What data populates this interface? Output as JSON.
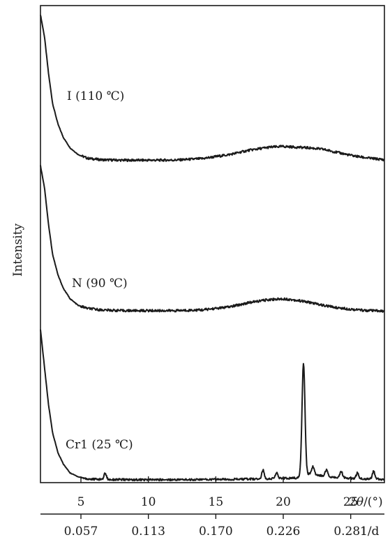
{
  "chart_data": {
    "type": "line",
    "ylabel": "Intensity",
    "x_axis": {
      "range": [
        2,
        27.5
      ],
      "ticks": [
        5,
        10,
        15,
        20,
        25
      ],
      "tick_labels": [
        "5",
        "10",
        "15",
        "20",
        "25"
      ],
      "label_prefix": "2",
      "label_theta": "θ",
      "label_suffix": "/(°)"
    },
    "secondary_x_axis": {
      "tick_labels": [
        "0.057",
        "0.113",
        "0.170",
        "0.226",
        "0.281"
      ],
      "label": "1/d"
    },
    "grid": false,
    "legend": "none",
    "y_ticks": "none",
    "series": [
      {
        "name": "I (110 ℃)",
        "peaks": [],
        "points": [
          [
            2.0,
            10.0
          ],
          [
            2.3,
            8.5
          ],
          [
            2.6,
            6.0
          ],
          [
            2.9,
            4.0
          ],
          [
            3.3,
            2.6
          ],
          [
            3.7,
            1.7
          ],
          [
            4.2,
            1.0
          ],
          [
            4.8,
            0.55
          ],
          [
            5.5,
            0.3
          ],
          [
            6.5,
            0.2
          ],
          [
            8.0,
            0.17
          ],
          [
            10.0,
            0.17
          ],
          [
            12.0,
            0.18
          ],
          [
            14.0,
            0.28
          ],
          [
            16.0,
            0.55
          ],
          [
            17.5,
            0.85
          ],
          [
            19.0,
            1.05
          ],
          [
            20.0,
            1.1
          ],
          [
            21.0,
            1.05
          ],
          [
            22.0,
            1.0
          ],
          [
            23.0,
            0.9
          ],
          [
            24.0,
            0.7
          ],
          [
            25.0,
            0.5
          ],
          [
            26.0,
            0.35
          ],
          [
            27.0,
            0.25
          ],
          [
            27.5,
            0.2
          ]
        ]
      },
      {
        "name": "N (90 ℃)",
        "peaks": [],
        "points": [
          [
            2.0,
            10.0
          ],
          [
            2.3,
            8.5
          ],
          [
            2.6,
            6.0
          ],
          [
            2.9,
            4.0
          ],
          [
            3.3,
            2.6
          ],
          [
            3.7,
            1.7
          ],
          [
            4.2,
            1.0
          ],
          [
            4.8,
            0.55
          ],
          [
            5.5,
            0.35
          ],
          [
            6.5,
            0.25
          ],
          [
            8.0,
            0.2
          ],
          [
            10.0,
            0.2
          ],
          [
            12.0,
            0.2
          ],
          [
            14.0,
            0.25
          ],
          [
            16.0,
            0.45
          ],
          [
            17.5,
            0.75
          ],
          [
            19.0,
            0.95
          ],
          [
            20.0,
            1.0
          ],
          [
            21.0,
            0.9
          ],
          [
            22.0,
            0.75
          ],
          [
            23.0,
            0.55
          ],
          [
            24.0,
            0.4
          ],
          [
            25.0,
            0.3
          ],
          [
            26.0,
            0.22
          ],
          [
            27.0,
            0.18
          ],
          [
            27.5,
            0.16
          ]
        ]
      },
      {
        "name": "Cr1 (25 ℃)",
        "peaks": [
          [
            6.8,
            0.5
          ],
          [
            18.5,
            0.7
          ],
          [
            19.5,
            0.45
          ],
          [
            21.5,
            9.0
          ],
          [
            22.2,
            0.6
          ],
          [
            23.2,
            0.55
          ],
          [
            24.3,
            0.5
          ],
          [
            25.5,
            0.45
          ],
          [
            26.7,
            0.6
          ]
        ],
        "points": [
          [
            2.0,
            12.0
          ],
          [
            2.3,
            9.0
          ],
          [
            2.6,
            6.0
          ],
          [
            2.9,
            3.8
          ],
          [
            3.3,
            2.2
          ],
          [
            3.7,
            1.3
          ],
          [
            4.2,
            0.6
          ],
          [
            4.8,
            0.3
          ],
          [
            5.5,
            0.12
          ],
          [
            7.0,
            0.08
          ],
          [
            10.0,
            0.06
          ],
          [
            14.0,
            0.08
          ],
          [
            18.0,
            0.12
          ],
          [
            21.0,
            0.2
          ],
          [
            22.0,
            0.55
          ],
          [
            23.0,
            0.35
          ],
          [
            24.0,
            0.25
          ],
          [
            25.0,
            0.18
          ],
          [
            26.0,
            0.14
          ],
          [
            27.0,
            0.12
          ],
          [
            27.5,
            0.1
          ]
        ]
      }
    ]
  }
}
